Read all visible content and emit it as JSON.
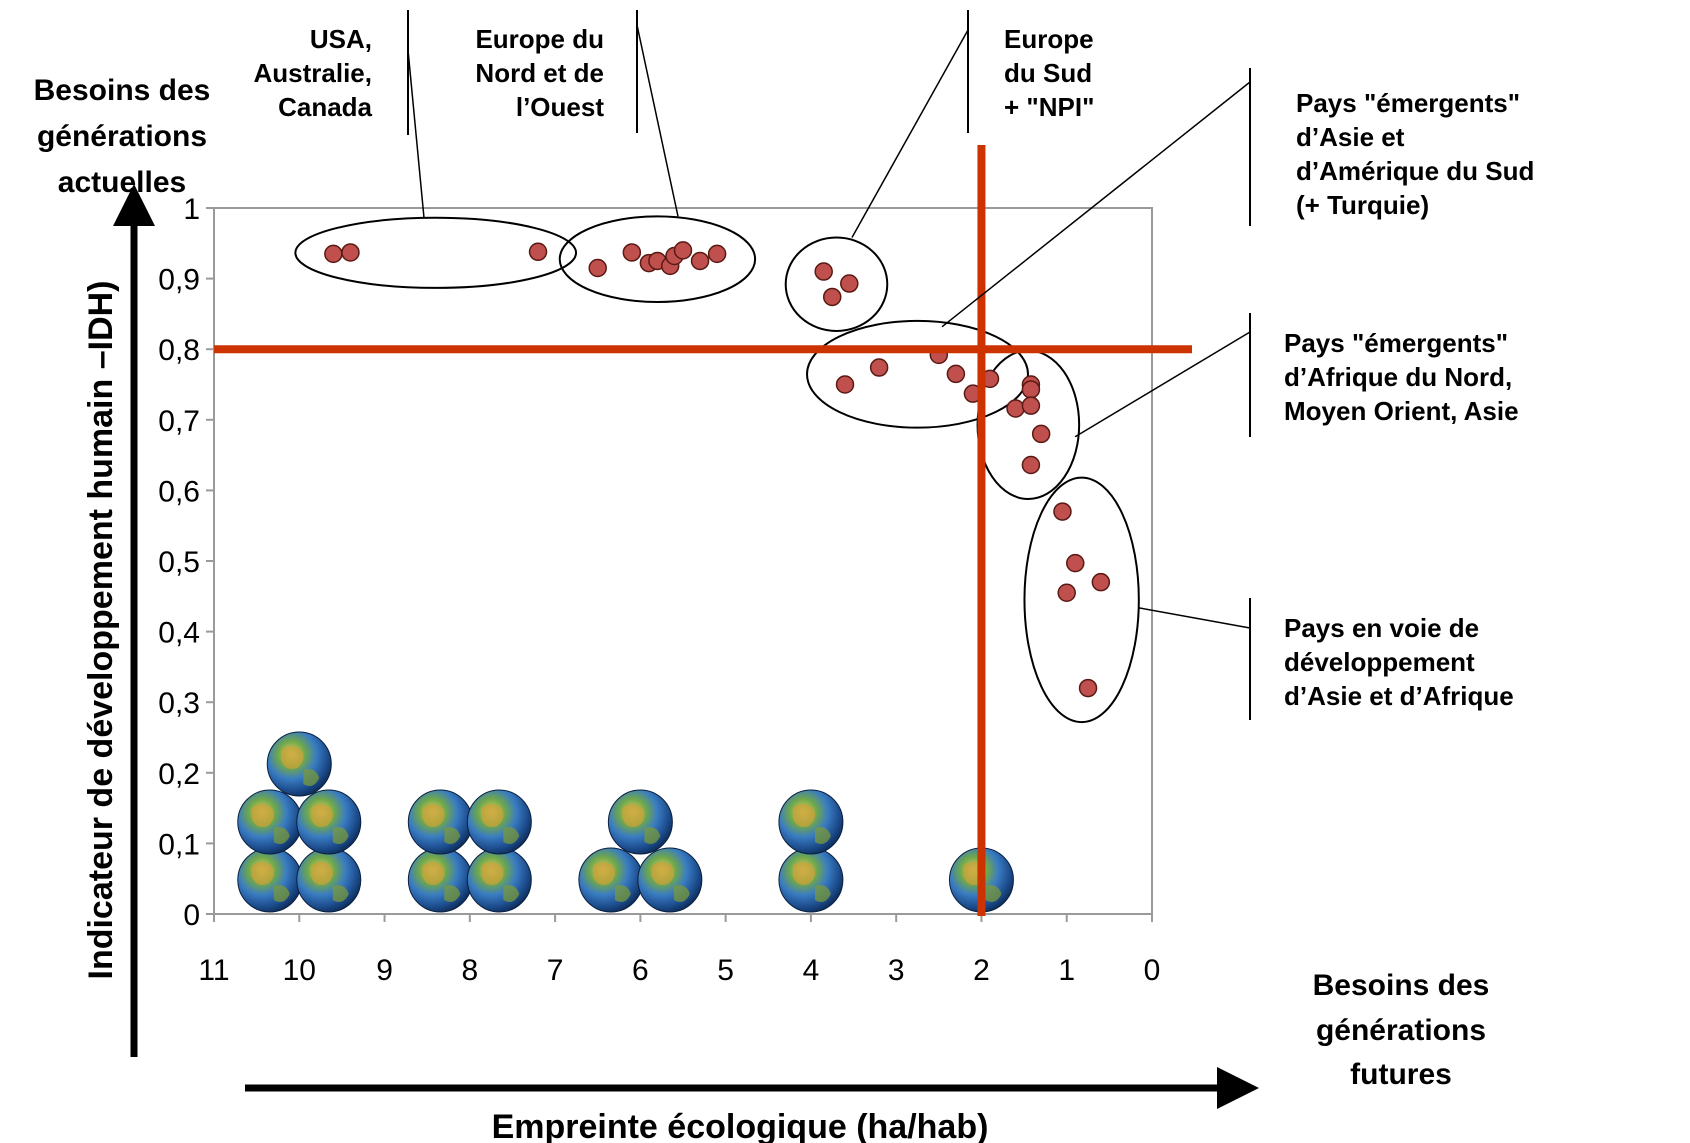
{
  "chart_data": {
    "type": "scatter",
    "title": "",
    "xlabel": "Empreinte écologique (ha/hab)",
    "ylabel": "Indicateur de développement humain –IDH)",
    "xlim": [
      11,
      0
    ],
    "ylim": [
      0,
      1
    ],
    "x_reversed": true,
    "x_ticks": [
      "11",
      "10",
      "9",
      "8",
      "7",
      "6",
      "5",
      "4",
      "3",
      "2",
      "1",
      "0"
    ],
    "y_ticks": [
      "0",
      "0,1",
      "0,2",
      "0,3",
      "0,4",
      "0,5",
      "0,6",
      "0,7",
      "0,8",
      "0,9",
      "1"
    ],
    "grid": false,
    "reference_lines": {
      "x": 2,
      "y": 0.8,
      "color": "#cc3300"
    },
    "corner_labels": {
      "y_axis_top": [
        "Besoins des",
        "générations",
        "actuelles"
      ],
      "x_axis_right": [
        "Besoins des",
        "générations",
        "futures"
      ]
    },
    "marker_color": "#c0504d",
    "series": [
      {
        "points": [
          {
            "x": 9.6,
            "y": 0.935
          },
          {
            "x": 9.4,
            "y": 0.937
          },
          {
            "x": 7.2,
            "y": 0.938
          }
        ]
      },
      {
        "points": [
          {
            "x": 6.5,
            "y": 0.915
          },
          {
            "x": 6.1,
            "y": 0.937
          },
          {
            "x": 5.9,
            "y": 0.922
          },
          {
            "x": 5.8,
            "y": 0.925
          },
          {
            "x": 5.65,
            "y": 0.918
          },
          {
            "x": 5.6,
            "y": 0.932
          },
          {
            "x": 5.5,
            "y": 0.94
          },
          {
            "x": 5.3,
            "y": 0.925
          },
          {
            "x": 5.1,
            "y": 0.935
          }
        ]
      },
      {
        "points": [
          {
            "x": 3.85,
            "y": 0.91
          },
          {
            "x": 3.75,
            "y": 0.874
          },
          {
            "x": 3.55,
            "y": 0.893
          }
        ]
      },
      {
        "points": [
          {
            "x": 3.6,
            "y": 0.75
          },
          {
            "x": 3.2,
            "y": 0.774
          },
          {
            "x": 2.5,
            "y": 0.792
          },
          {
            "x": 2.3,
            "y": 0.765
          },
          {
            "x": 2.1,
            "y": 0.737
          },
          {
            "x": 1.9,
            "y": 0.758
          }
        ]
      },
      {
        "points": [
          {
            "x": 1.6,
            "y": 0.716
          },
          {
            "x": 1.42,
            "y": 0.75
          },
          {
            "x": 1.42,
            "y": 0.743
          },
          {
            "x": 1.42,
            "y": 0.72
          },
          {
            "x": 1.3,
            "y": 0.68
          },
          {
            "x": 1.42,
            "y": 0.636
          }
        ]
      },
      {
        "points": [
          {
            "x": 1.05,
            "y": 0.57
          },
          {
            "x": 0.9,
            "y": 0.497
          },
          {
            "x": 1.0,
            "y": 0.455
          },
          {
            "x": 0.6,
            "y": 0.47
          },
          {
            "x": 0.75,
            "y": 0.32
          }
        ]
      }
    ],
    "annotations": [
      {
        "lines": [
          "USA,",
          "Australie,",
          "Canada"
        ]
      },
      {
        "lines": [
          "Europe du",
          "Nord et de",
          "l’Ouest"
        ]
      },
      {
        "lines": [
          "Europe",
          "du Sud",
          "+ \"NPI\""
        ]
      },
      {
        "lines": [
          " Pays \"émergents\"",
          "d’Asie et",
          "d’Amérique du Sud",
          "(+ Turquie)"
        ]
      },
      {
        "lines": [
          "Pays \"émergents\"",
          "d’Afrique du Nord,",
          "Moyen Orient, Asie"
        ]
      },
      {
        "lines": [
          "Pays en voie de",
          "développement",
          "d’Asie et d’Afrique"
        ]
      }
    ],
    "globe_stacks": [
      {
        "x": 10,
        "count": 5
      },
      {
        "x": 8,
        "count": 4
      },
      {
        "x": 6,
        "count": 3
      },
      {
        "x": 4,
        "count": 2
      },
      {
        "x": 2,
        "count": 1
      }
    ]
  }
}
